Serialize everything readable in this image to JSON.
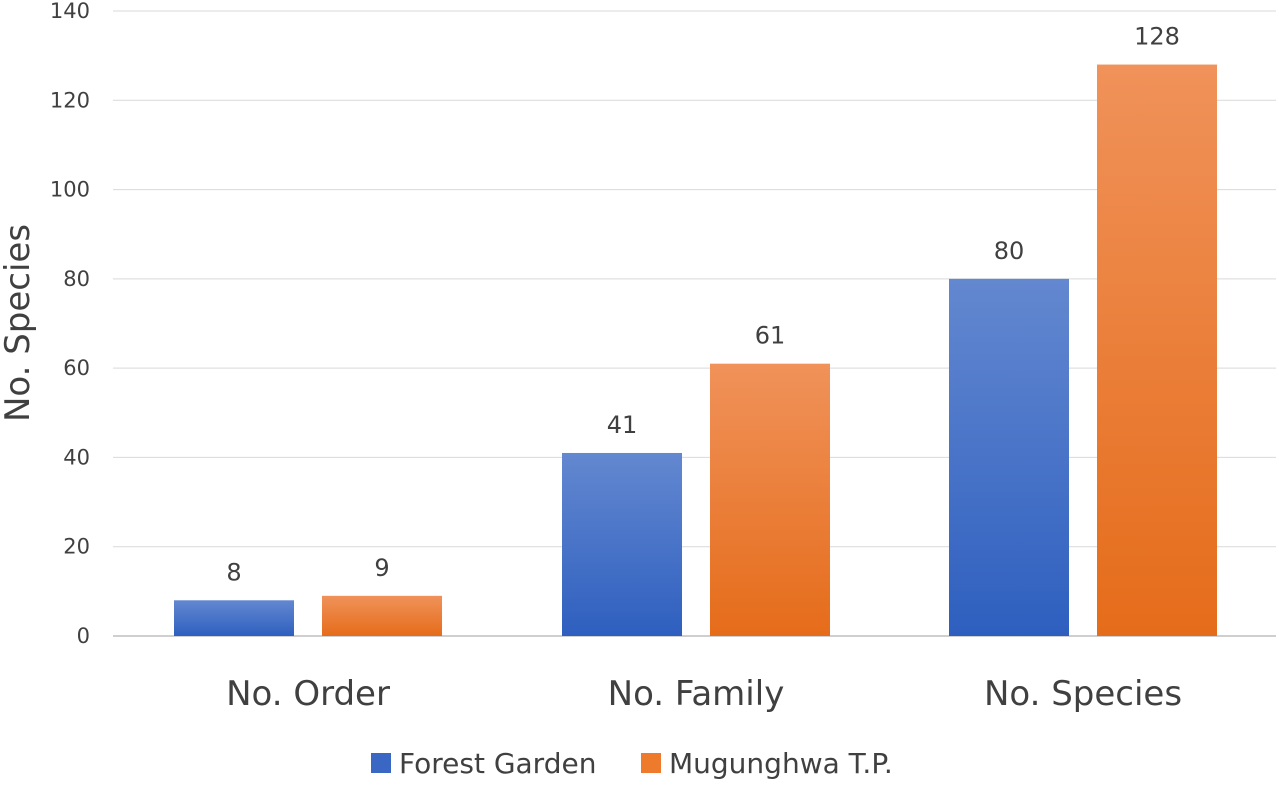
{
  "chart_data": {
    "type": "bar",
    "title": "",
    "xlabel": "",
    "ylabel": "No. Species",
    "categories": [
      "No. Order",
      "No. Family",
      "No. Species"
    ],
    "series": [
      {
        "name": "Forest Garden",
        "values": [
          8,
          41,
          80
        ]
      },
      {
        "name": "Mugunghwa T.P.",
        "values": [
          9,
          61,
          128
        ]
      }
    ],
    "ylim": [
      0,
      140
    ],
    "yticks": [
      0,
      20,
      40,
      60,
      80,
      100,
      120,
      140
    ],
    "grid": true,
    "legend_position": "bottom",
    "data_labels": true,
    "colors": {
      "Forest Garden": {
        "top": "#6388d0",
        "bottom": "#2e5fbf",
        "legend": "#3a67c4"
      },
      "Mugunghwa T.P.": {
        "top": "#f0925a",
        "bottom": "#e56c1a",
        "legend": "#ee7a2c"
      }
    }
  }
}
